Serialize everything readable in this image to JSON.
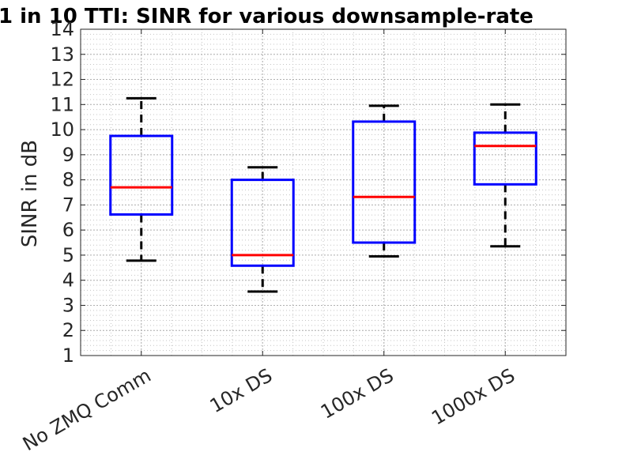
{
  "chart_data": {
    "type": "box",
    "title": "1 in 10 TTI: SINR for various downsample-rate",
    "ylabel": "SINR in dB",
    "xlabel": "",
    "ylim": [
      1,
      14
    ],
    "yticks": [
      "1",
      "2",
      "3",
      "4",
      "5",
      "6",
      "7",
      "8",
      "9",
      "10",
      "11",
      "12",
      "13",
      "14"
    ],
    "grid": true,
    "minor_grid": true,
    "categories": [
      "No ZMQ Comm",
      "10x DS",
      "100x DS",
      "1000x DS"
    ],
    "boxes": [
      {
        "whisker_low": 4.78,
        "q1": 6.62,
        "median": 7.7,
        "q3": 9.75,
        "whisker_high": 11.25
      },
      {
        "whisker_low": 3.55,
        "q1": 4.58,
        "median": 5.0,
        "q3": 8.0,
        "whisker_high": 8.5
      },
      {
        "whisker_low": 4.95,
        "q1": 5.5,
        "median": 7.32,
        "q3": 10.32,
        "whisker_high": 10.95
      },
      {
        "whisker_low": 5.35,
        "q1": 7.82,
        "median": 9.35,
        "q3": 9.88,
        "whisker_high": 11.0
      }
    ],
    "colors": {
      "box": "#0000ff",
      "median": "#ff0000",
      "whisker": "#000000",
      "axis": "#262626"
    }
  }
}
